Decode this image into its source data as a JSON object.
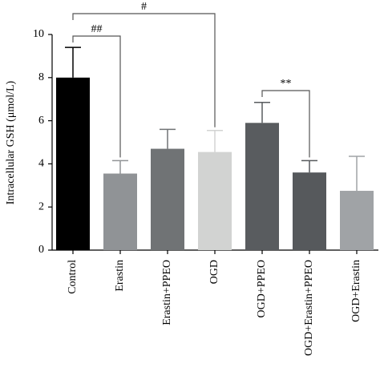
{
  "chart_data": {
    "type": "bar",
    "y_label": "Intracellular GSH (μmol/L)",
    "categories": [
      "Control",
      "Erastin",
      "Erastin+PPEO",
      "OGD",
      "OGD+PPEO",
      "OGD+Erastin+PPEO",
      "OGD+Erastin"
    ],
    "values": [
      8.0,
      3.55,
      4.7,
      4.55,
      5.9,
      3.6,
      2.75
    ],
    "errors": [
      1.4,
      0.6,
      0.9,
      1.0,
      0.95,
      0.55,
      1.6
    ],
    "colors": [
      "#000000",
      "#909396",
      "#707375",
      "#d2d3d2",
      "#595c5f",
      "#56595c",
      "#a0a3a6"
    ],
    "ylim": [
      0,
      10
    ],
    "yticks": [
      0,
      2,
      4,
      6,
      8,
      10
    ],
    "annotations": [
      {
        "text": "#"
      },
      {
        "text": "##"
      },
      {
        "text": "**"
      }
    ]
  }
}
